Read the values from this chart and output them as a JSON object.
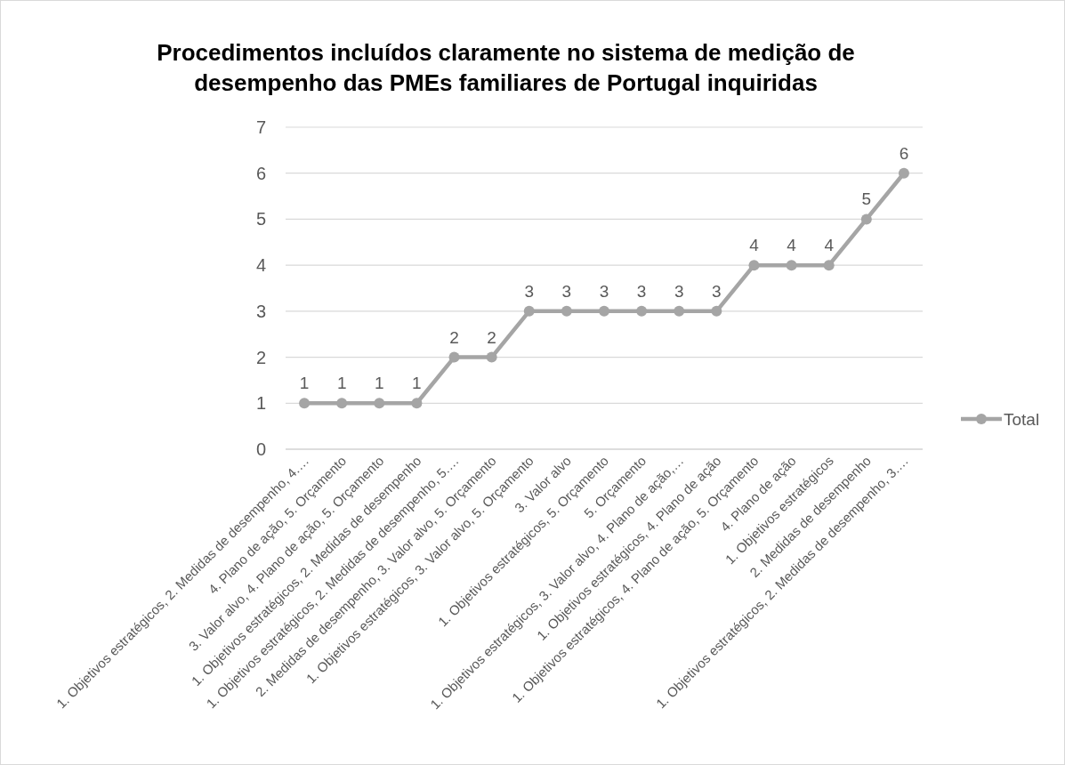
{
  "chart_data": {
    "type": "line",
    "title": "Procedimentos incluídos claramente no sistema de medição de desempenho das PMEs familiares de Portugal inquiridas",
    "categories": [
      "1. Objetivos estratégicos, 2. Medidas de desempenho, 4.…",
      "4. Plano de ação, 5. Orçamento",
      "3. Valor alvo, 4. Plano de ação, 5. Orçamento",
      "1. Objetivos estratégicos, 2. Medidas de desempenho",
      "1. Objetivos estratégicos, 2. Medidas de desempenho, 5.…",
      "2. Medidas de desempenho, 3. Valor alvo, 5. Orçamento",
      "1. Objetivos estratégicos, 3. Valor alvo, 5. Orçamento",
      "3. Valor alvo",
      "1. Objetivos estratégicos, 5. Orçamento",
      "5. Orçamento",
      "1. Objetivos estratégicos, 3. Valor alvo, 4. Plano de ação,…",
      "1. Objetivos estratégicos, 4. Plano de ação",
      "1. Objetivos estratégicos, 4. Plano de ação, 5. Orçamento",
      "4. Plano de ação",
      "1. Objetivos estratégicos",
      "2. Medidas de desempenho",
      "1. Objetivos estratégicos, 2. Medidas de desempenho, 3.…"
    ],
    "series": [
      {
        "name": "Total",
        "color": "#a5a5a5",
        "values": [
          1,
          1,
          1,
          1,
          2,
          2,
          3,
          3,
          3,
          3,
          3,
          3,
          4,
          4,
          4,
          5,
          6
        ]
      }
    ],
    "ylim": [
      0,
      7
    ],
    "yticks": [
      0,
      1,
      2,
      3,
      4,
      5,
      6,
      7
    ],
    "grid": "y",
    "legend": "right",
    "marker": "circle",
    "line_style": "solid",
    "data_labels": true
  }
}
